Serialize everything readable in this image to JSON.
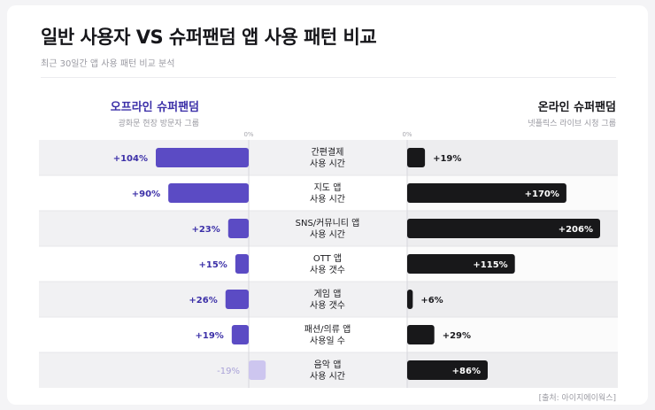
{
  "header": {
    "title": "일반 사용자 VS 슈퍼팬덤 앱 사용 패턴 비교",
    "subtitle": "최근 30일간 앱 사용 패턴 비교 분석"
  },
  "left_group": {
    "title": "오프라인 슈퍼팬덤",
    "subtitle": "광화문 현장 방문자 그룹"
  },
  "right_group": {
    "title": "온라인 슈퍼팬덤",
    "subtitle": "넷플릭스 라이브 시청 그룹"
  },
  "source": "[출처: 아이지에이웍스]",
  "colors": {
    "left_bar": "#5b4bc4",
    "left_negative_bar": "#cdc6ef",
    "left_label": "#3c30a8",
    "left_negative_label": "#a9a2d8",
    "right_bar": "#18181a",
    "row_band": "#f1f1f3"
  },
  "chart_data": [
    {
      "type": "bar",
      "orientation": "horizontal",
      "name": "오프라인 슈퍼팬덤",
      "axis_zero_label": "0%",
      "categories": [
        [
          "간편결제",
          "사용 시간"
        ],
        [
          "지도 앱",
          "사용 시간"
        ],
        [
          "SNS/커뮤니티 앱",
          "사용 시간"
        ],
        [
          "OTT 앱",
          "사용 갯수"
        ],
        [
          "게임 앱",
          "사용 갯수"
        ],
        [
          "패션/의류 앱",
          "사용일 수"
        ],
        [
          "음악 앱",
          "사용 시간"
        ]
      ],
      "values": [
        104,
        90,
        23,
        15,
        26,
        19,
        -19
      ],
      "value_labels": [
        "+104%",
        "+90%",
        "+23%",
        "+15%",
        "+26%",
        "+19%",
        "-19%"
      ],
      "unit": "%"
    },
    {
      "type": "bar",
      "orientation": "horizontal",
      "name": "온라인 슈퍼팬덤",
      "axis_zero_label": "0%",
      "categories": [
        [
          "간편결제",
          "사용 시간"
        ],
        [
          "지도 앱",
          "사용 시간"
        ],
        [
          "SNS/커뮤니티 앱",
          "사용 시간"
        ],
        [
          "OTT 앱",
          "사용 갯수"
        ],
        [
          "게임 앱",
          "사용 갯수"
        ],
        [
          "패션/의류 앱",
          "사용일 수"
        ],
        [
          "음악 앱",
          "사용 시간"
        ]
      ],
      "values": [
        19,
        170,
        206,
        115,
        6,
        29,
        86
      ],
      "value_labels": [
        "+19%",
        "+170%",
        "+206%",
        "+115%",
        "+6%",
        "+29%",
        "+86%"
      ],
      "unit": "%"
    }
  ]
}
